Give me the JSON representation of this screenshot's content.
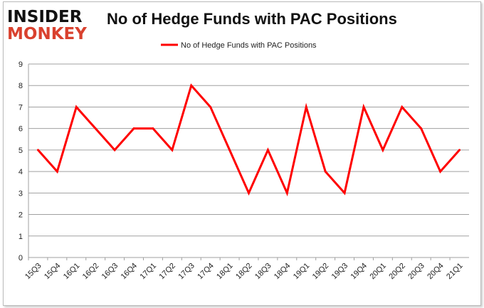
{
  "logo": {
    "line1": "INSIDER",
    "line2": "MONKEY"
  },
  "colors": {
    "series": "#ff0000",
    "grid": "#a0a0a0",
    "logo_red": "#d9412e"
  },
  "chart_data": {
    "type": "line",
    "title": "No of Hedge Funds with PAC Positions",
    "legend_position": "top",
    "grid": true,
    "ylim": [
      0,
      9
    ],
    "yticks": [
      0,
      1,
      2,
      3,
      4,
      5,
      6,
      7,
      8,
      9
    ],
    "categories": [
      "15Q3",
      "15Q4",
      "16Q1",
      "16Q2",
      "16Q3",
      "16Q4",
      "17Q1",
      "17Q2",
      "17Q3",
      "17Q4",
      "18Q1",
      "18Q2",
      "18Q3",
      "18Q4",
      "19Q1",
      "19Q2",
      "19Q3",
      "19Q4",
      "20Q1",
      "20Q2",
      "20Q3",
      "20Q4",
      "21Q1"
    ],
    "series": [
      {
        "name": "No of Hedge Funds with PAC Positions",
        "values": [
          5,
          4,
          7,
          6,
          5,
          6,
          6,
          5,
          8,
          7,
          5,
          3,
          5,
          3,
          7,
          4,
          3,
          7,
          5,
          7,
          6,
          4,
          5
        ]
      }
    ]
  }
}
